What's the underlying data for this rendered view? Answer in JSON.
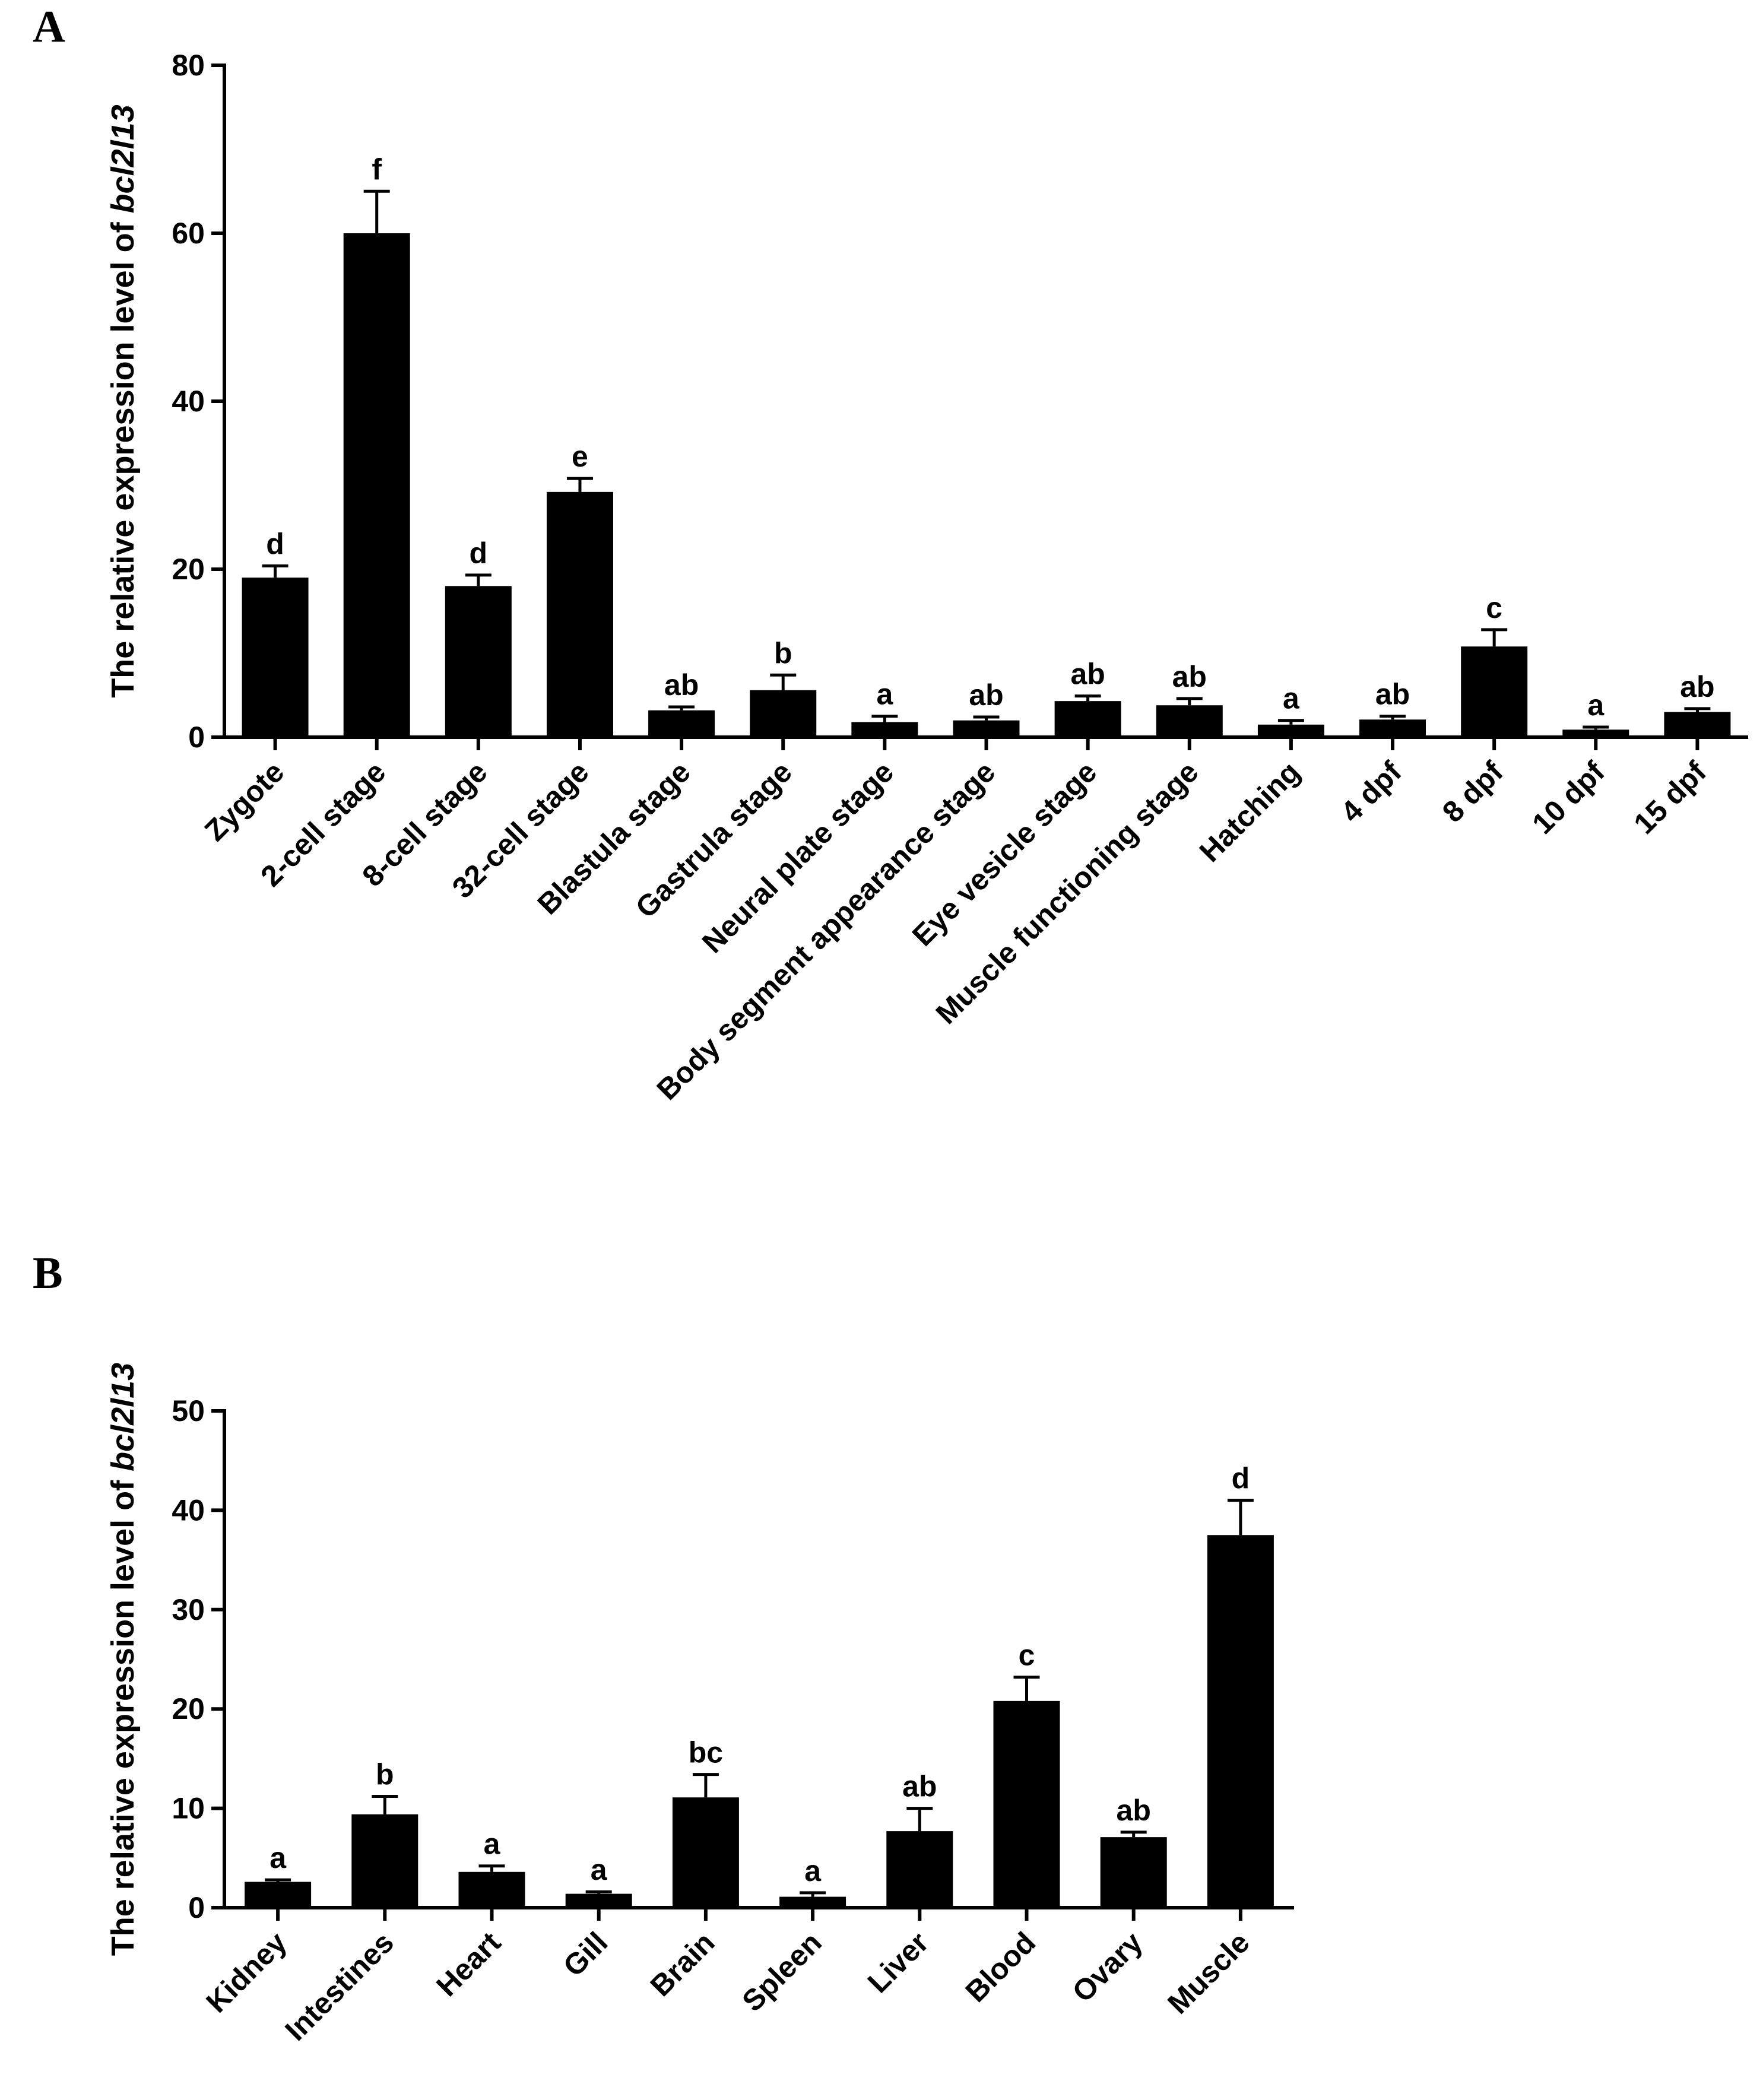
{
  "chart_data": [
    {
      "panel": "A",
      "type": "bar",
      "ylabel": "The relative expression level of ",
      "ylabel_gene": "bcl2l13",
      "ylim": [
        0,
        80
      ],
      "yticks": [
        0,
        20,
        40,
        60,
        80
      ],
      "categories": [
        "Zygote",
        "2-cell stage",
        "8-cell stage",
        "32-cell stage",
        "Blastula stage",
        "Gastrula stage",
        "Neural plate stage",
        "Body segment appearance stage",
        "Eye vesicle stage",
        "Muscle functioning stage",
        "Hatching",
        "4 dpf",
        "8 dpf",
        "10 dpf",
        "15 dpf"
      ],
      "values": [
        19,
        60,
        18,
        29.2,
        3.2,
        5.6,
        1.8,
        2,
        4.3,
        3.8,
        1.5,
        2.1,
        10.8,
        0.9,
        3
      ],
      "errors": [
        1.4,
        5,
        1.3,
        1.6,
        0.4,
        1.8,
        0.7,
        0.4,
        0.6,
        0.8,
        0.5,
        0.4,
        2,
        0.3,
        0.4
      ],
      "significance": [
        "d",
        "f",
        "d",
        "e",
        "ab",
        "b",
        "a",
        "ab",
        "ab",
        "ab",
        "a",
        "ab",
        "c",
        "a",
        "ab"
      ]
    },
    {
      "panel": "B",
      "type": "bar",
      "ylabel": "The relative expression level of ",
      "ylabel_gene": "bcl2l13",
      "ylim": [
        0,
        50
      ],
      "yticks": [
        0,
        10,
        20,
        30,
        40,
        50
      ],
      "categories": [
        "Kidney",
        "Intestines",
        "Heart",
        "Gill",
        "Brain",
        "Spleen",
        "Liver",
        "Blood",
        "Ovary",
        "Muscle"
      ],
      "values": [
        2.6,
        9.4,
        3.6,
        1.4,
        11.1,
        1.1,
        7.7,
        20.8,
        7.1,
        37.5
      ],
      "errors": [
        0.2,
        1.8,
        0.6,
        0.2,
        2.3,
        0.4,
        2.3,
        2.4,
        0.5,
        3.5
      ],
      "significance": [
        "a",
        "b",
        "a",
        "a",
        "bc",
        "a",
        "ab",
        "c",
        "ab",
        "d"
      ]
    }
  ]
}
